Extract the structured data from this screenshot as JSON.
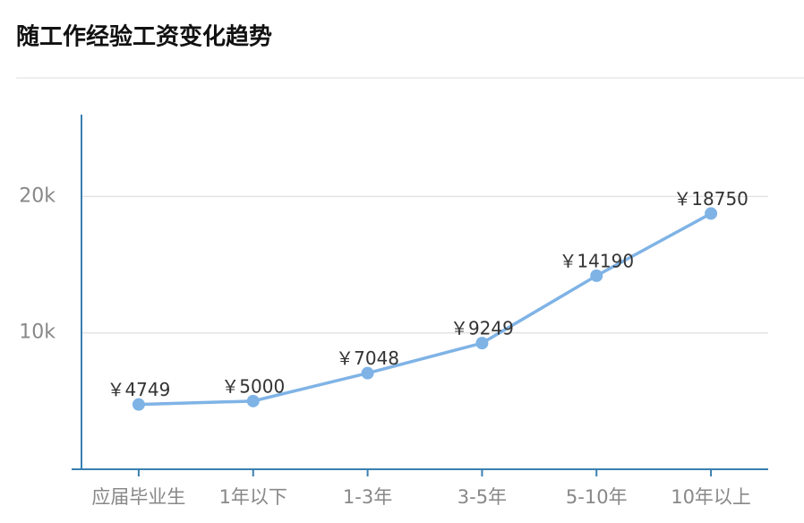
{
  "chart_data": {
    "type": "line",
    "title": "随工作经验工资变化趋势",
    "categories": [
      "应届毕业生",
      "1年以下",
      "1-3年",
      "3-5年",
      "5-10年",
      "10年以上"
    ],
    "values": [
      4749,
      5000,
      7048,
      9249,
      14190,
      18750
    ],
    "value_labels": [
      "￥4749",
      "￥5000",
      "￥7048",
      "￥9249",
      "￥14190",
      "￥18750"
    ],
    "color": "#7fb3e6",
    "ylim": [
      0,
      26000
    ],
    "yticks": [
      {
        "value": 10000,
        "label": "10k"
      },
      {
        "value": 20000,
        "label": "20k"
      }
    ],
    "grid": true
  }
}
